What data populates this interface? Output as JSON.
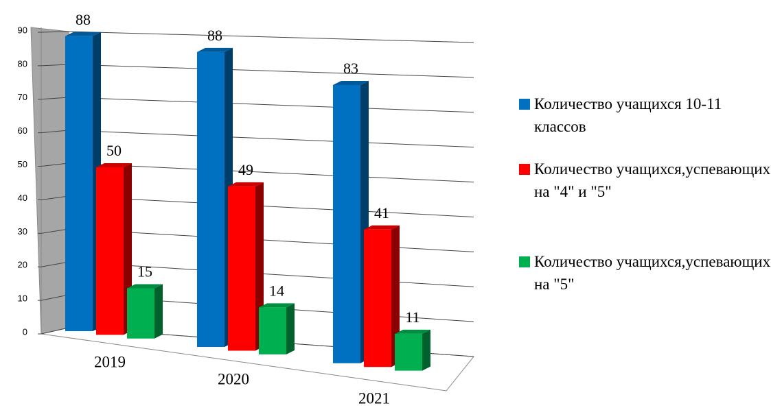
{
  "chart_data": {
    "type": "bar3d",
    "categories": [
      "2019",
      "2020",
      "2021"
    ],
    "series": [
      {
        "name": "Количество учащихся 10-11 классов",
        "color": "#0070c0",
        "values": [
          88,
          88,
          83
        ]
      },
      {
        "name": "Количество учащихся,успевающих на \"4\" и \"5\"",
        "color": "#ff0000",
        "values": [
          50,
          49,
          41
        ]
      },
      {
        "name": "Количество учащихся,успевающих на \"5\"",
        "color": "#00b050",
        "values": [
          15,
          14,
          11
        ]
      }
    ],
    "ylim": [
      0,
      90
    ],
    "yticks": [
      0,
      10,
      20,
      30,
      40,
      50,
      60,
      70,
      80,
      90
    ],
    "grid": true,
    "legend": "right"
  }
}
